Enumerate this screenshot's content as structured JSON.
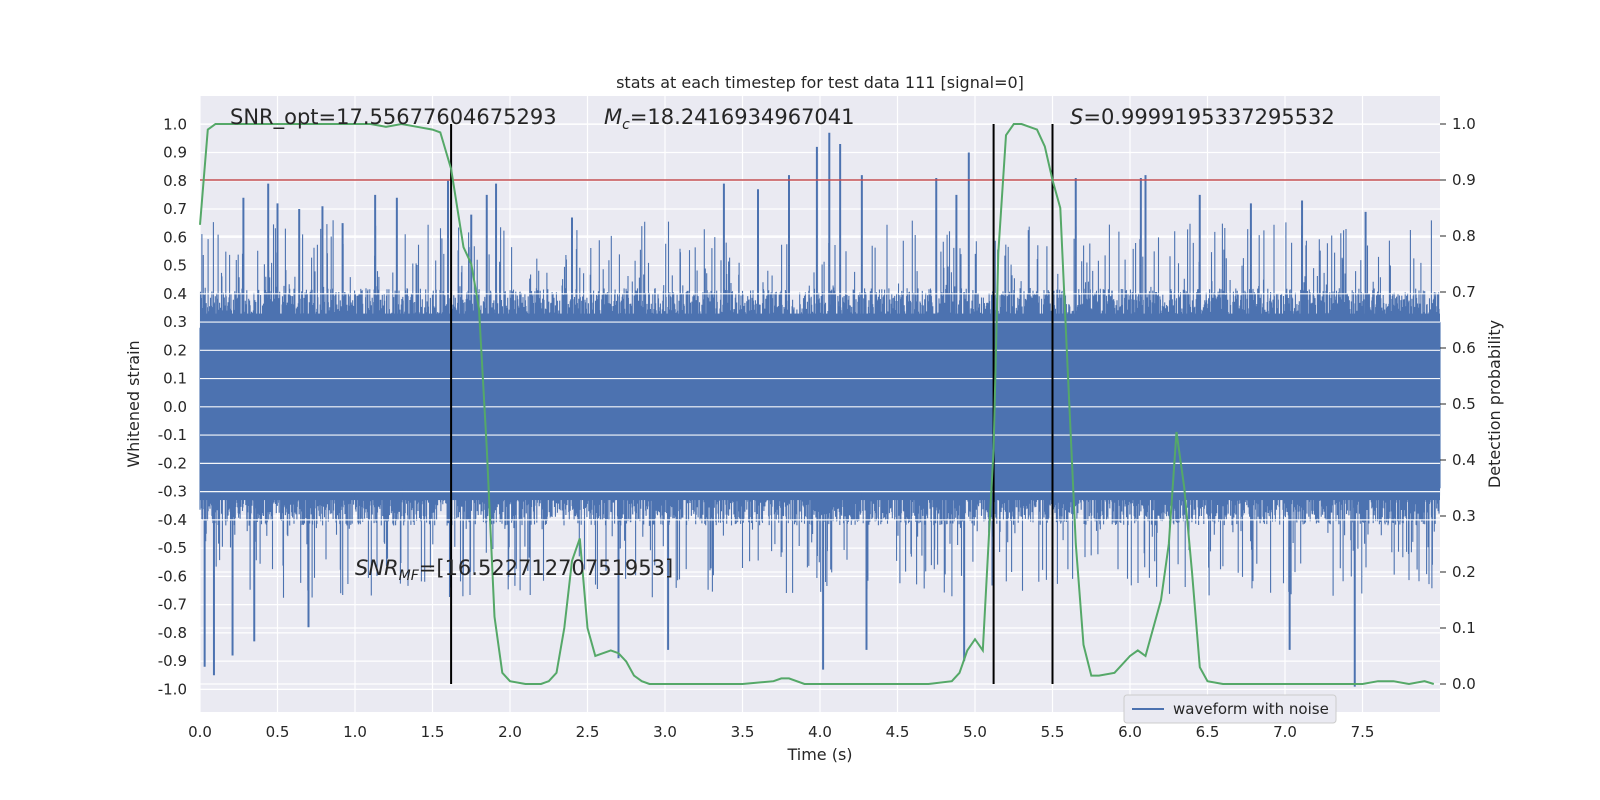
{
  "chart_data": {
    "type": "line",
    "title": "stats at each timestep for test data 111 [signal=0]",
    "xlabel": "Time (s)",
    "ylabel_left": "Whitened strain",
    "ylabel_right": "Detection probability",
    "xlim": [
      0.0,
      8.0
    ],
    "ylim_left": [
      -1.08,
      1.1
    ],
    "ylim_right": [
      -0.05,
      1.05
    ],
    "x_ticks": [
      "0.0",
      "0.5",
      "1.0",
      "1.5",
      "2.0",
      "2.5",
      "3.0",
      "3.5",
      "4.0",
      "4.5",
      "5.0",
      "5.5",
      "6.0",
      "6.5",
      "7.0",
      "7.5"
    ],
    "y_ticks_left": [
      "1.0",
      "0.9",
      "0.8",
      "0.7",
      "0.6",
      "0.5",
      "0.4",
      "0.3",
      "0.2",
      "0.1",
      "0.0",
      "-0.1",
      "-0.2",
      "-0.3",
      "-0.4",
      "-0.5",
      "-0.6",
      "-0.7",
      "-0.8",
      "-0.9",
      "-1.0"
    ],
    "y_ticks_right": [
      "1.0",
      "0.9",
      "0.8",
      "0.7",
      "0.6",
      "0.5",
      "0.4",
      "0.3",
      "0.2",
      "0.1",
      "0.0"
    ],
    "grid": true,
    "legend": {
      "position": "lower-right",
      "entries": [
        "waveform with noise"
      ]
    },
    "annotations": {
      "snr_opt": "SNR_opt=17.55677604675293",
      "mc_symbol": "M",
      "mc_sub": "c",
      "mc_value": "=18.2416934967041",
      "s_symbol": "S",
      "s_value": "=0.9999195337295532",
      "snr_mf_symbol": "SNR",
      "snr_mf_sub": "MF",
      "snr_mf_value": "=[16.52271270751953]"
    },
    "threshold": {
      "value": 0.9,
      "axis": "right",
      "color": "#c44e52"
    },
    "vertical_lines": [
      1.62,
      5.12,
      5.5
    ],
    "series": [
      {
        "name": "waveform with noise",
        "axis": "left",
        "color": "#4c72b0",
        "kind": "noise-envelope",
        "spikes": [
          {
            "x": 0.03,
            "lo": -0.92
          },
          {
            "x": 0.09,
            "lo": -0.95
          },
          {
            "x": 0.21,
            "lo": -0.88
          },
          {
            "x": 0.28,
            "hi": 0.74
          },
          {
            "x": 0.35,
            "lo": -0.83
          },
          {
            "x": 0.44,
            "hi": 0.79
          },
          {
            "x": 0.5,
            "hi": 0.72
          },
          {
            "x": 0.64,
            "hi": 0.7
          },
          {
            "x": 0.7,
            "lo": -0.78
          },
          {
            "x": 0.79,
            "hi": 0.71
          },
          {
            "x": 0.92,
            "hi": 0.65
          },
          {
            "x": 1.13,
            "hi": 0.75
          },
          {
            "x": 1.27,
            "hi": 0.74
          },
          {
            "x": 1.6,
            "hi": 0.8
          },
          {
            "x": 1.75,
            "hi": 0.68
          },
          {
            "x": 1.85,
            "hi": 0.75
          },
          {
            "x": 1.91,
            "hi": 0.79
          },
          {
            "x": 2.4,
            "hi": 0.67
          },
          {
            "x": 2.7,
            "lo": -0.89
          },
          {
            "x": 3.02,
            "lo": -0.86
          },
          {
            "x": 3.38,
            "hi": 0.79
          },
          {
            "x": 3.6,
            "hi": 0.77
          },
          {
            "x": 3.8,
            "hi": 0.82
          },
          {
            "x": 3.98,
            "hi": 0.92
          },
          {
            "x": 4.02,
            "lo": -0.93
          },
          {
            "x": 4.06,
            "hi": 0.97
          },
          {
            "x": 4.13,
            "hi": 0.93
          },
          {
            "x": 4.27,
            "hi": 0.82
          },
          {
            "x": 4.3,
            "lo": -0.86
          },
          {
            "x": 4.75,
            "hi": 0.81
          },
          {
            "x": 4.88,
            "hi": 0.75
          },
          {
            "x": 4.93,
            "lo": -0.9
          },
          {
            "x": 4.96,
            "hi": 0.9
          },
          {
            "x": 5.65,
            "hi": 0.81
          },
          {
            "x": 6.07,
            "hi": 0.81
          },
          {
            "x": 6.1,
            "hi": 0.82
          },
          {
            "x": 6.45,
            "hi": 0.75
          },
          {
            "x": 6.78,
            "hi": 0.72
          },
          {
            "x": 7.03,
            "lo": -0.86
          },
          {
            "x": 7.11,
            "hi": 0.73
          },
          {
            "x": 7.45,
            "lo": -0.99
          },
          {
            "x": 7.52,
            "hi": 0.69
          }
        ]
      },
      {
        "name": "detection probability",
        "axis": "right",
        "color": "#55a868",
        "x": [
          0.0,
          0.05,
          0.1,
          0.2,
          0.4,
          0.6,
          0.8,
          1.0,
          1.1,
          1.2,
          1.3,
          1.4,
          1.5,
          1.55,
          1.62,
          1.7,
          1.75,
          1.8,
          1.85,
          1.9,
          1.95,
          2.0,
          2.1,
          2.2,
          2.25,
          2.3,
          2.35,
          2.4,
          2.45,
          2.5,
          2.55,
          2.6,
          2.65,
          2.7,
          2.75,
          2.8,
          2.85,
          2.9,
          3.0,
          3.1,
          3.3,
          3.5,
          3.7,
          3.75,
          3.8,
          3.9,
          4.0,
          4.2,
          4.5,
          4.7,
          4.85,
          4.9,
          4.95,
          5.0,
          5.05,
          5.12,
          5.15,
          5.2,
          5.25,
          5.3,
          5.4,
          5.45,
          5.5,
          5.55,
          5.6,
          5.65,
          5.7,
          5.75,
          5.8,
          5.9,
          6.0,
          6.05,
          6.1,
          6.2,
          6.25,
          6.3,
          6.35,
          6.4,
          6.45,
          6.5,
          6.6,
          7.0,
          7.5,
          7.6,
          7.7,
          7.8,
          7.9,
          7.96
        ],
        "y": [
          0.82,
          0.99,
          1.0,
          1.0,
          1.0,
          1.0,
          1.0,
          1.0,
          1.0,
          0.995,
          1.0,
          0.995,
          0.99,
          0.985,
          0.92,
          0.78,
          0.75,
          0.67,
          0.42,
          0.12,
          0.02,
          0.005,
          0.0,
          0.0,
          0.005,
          0.02,
          0.1,
          0.22,
          0.26,
          0.1,
          0.05,
          0.055,
          0.06,
          0.055,
          0.04,
          0.015,
          0.005,
          0.0,
          0.0,
          0.0,
          0.0,
          0.0,
          0.005,
          0.01,
          0.01,
          0.0,
          0.0,
          0.0,
          0.0,
          0.0,
          0.005,
          0.02,
          0.06,
          0.08,
          0.06,
          0.42,
          0.77,
          0.98,
          1.0,
          1.0,
          0.99,
          0.96,
          0.9,
          0.85,
          0.55,
          0.25,
          0.07,
          0.015,
          0.015,
          0.02,
          0.05,
          0.06,
          0.05,
          0.15,
          0.25,
          0.45,
          0.35,
          0.2,
          0.03,
          0.005,
          0.0,
          0.0,
          0.0,
          0.005,
          0.005,
          0.0,
          0.005,
          0.0
        ]
      }
    ]
  }
}
